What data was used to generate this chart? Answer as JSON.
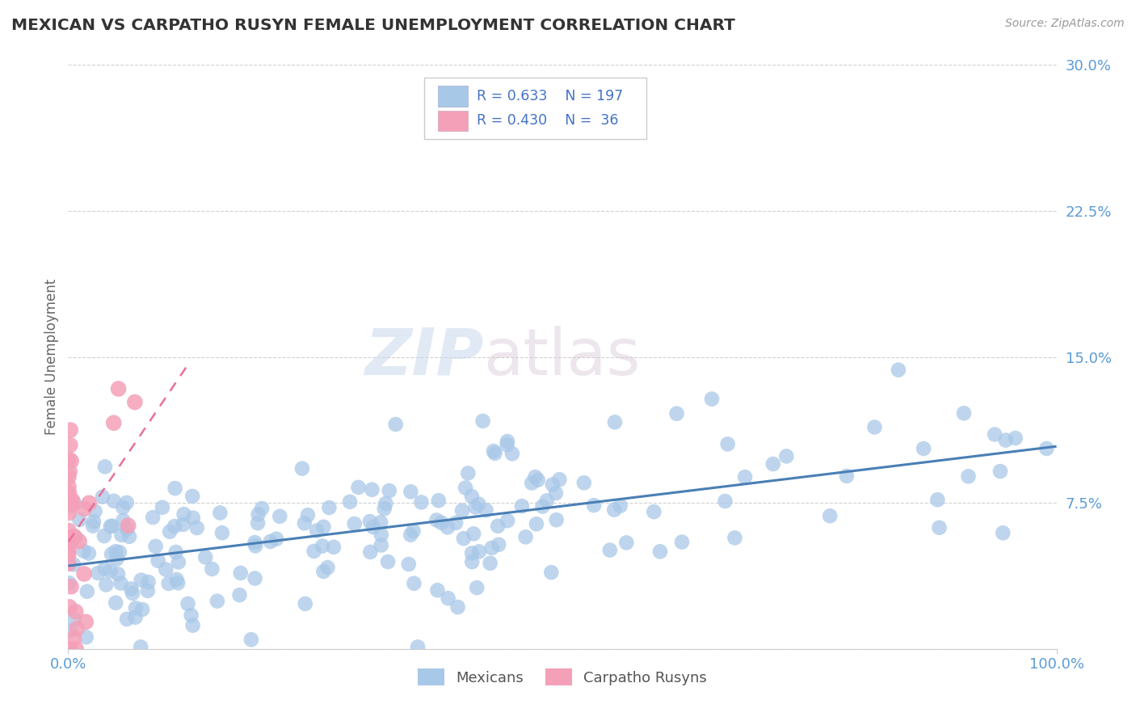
{
  "title": "MEXICAN VS CARPATHO RUSYN FEMALE UNEMPLOYMENT CORRELATION CHART",
  "source": "Source: ZipAtlas.com",
  "ylabel_label": "Female Unemployment",
  "series1_color": "#a8c8e8",
  "series2_color": "#f4a0b8",
  "line1_color": "#4a7fb5",
  "line2_color": "#e8709a",
  "watermark_zip": "ZIP",
  "watermark_atlas": "atlas",
  "background_color": "#ffffff",
  "grid_color": "#cccccc",
  "r1": 0.633,
  "n1": 197,
  "r2": 0.43,
  "n2": 36,
  "series1_label": "Mexicans",
  "series2_label": "Carpatho Rusyns",
  "xlim": [
    0,
    1.0
  ],
  "ylim": [
    0,
    0.3
  ],
  "title_color": "#333333",
  "axis_label_color": "#5b9bd5",
  "legend_color": "#4472c4",
  "yticks": [
    0,
    0.075,
    0.15,
    0.225,
    0.3
  ],
  "ytick_labels": [
    "",
    "7.5%",
    "15.0%",
    "22.5%",
    "30.0%"
  ],
  "xtick_labels": [
    "0.0%",
    "100.0%"
  ]
}
